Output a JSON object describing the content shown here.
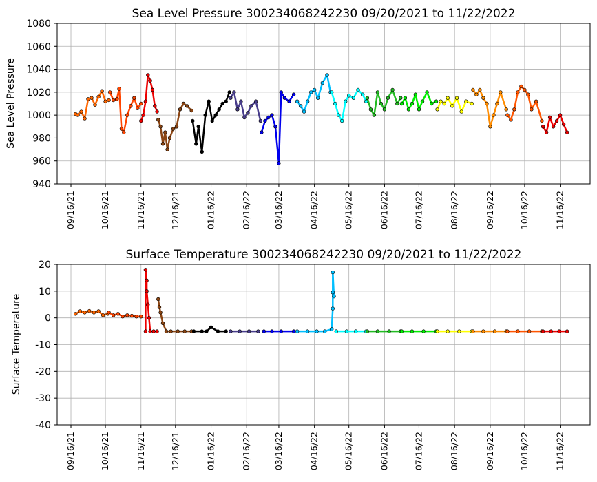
{
  "chart_data": [
    {
      "type": "scatter",
      "title": "Sea Level Pressure 300234068242230  09/20/2021 to 11/22/2022",
      "xlabel": "",
      "ylabel": "Sea Level Pressure",
      "ylim": [
        940,
        1080
      ],
      "yticks": [
        940,
        960,
        980,
        1000,
        1020,
        1040,
        1060,
        1080
      ],
      "xlim": [
        "2021-09-04",
        "2022-12-12"
      ],
      "xticks": [
        "09/16/21",
        "10/16/21",
        "11/16/21",
        "12/16/21",
        "01/16/22",
        "02/16/22",
        "03/16/22",
        "04/16/22",
        "05/16/22",
        "06/16/22",
        "07/16/22",
        "08/16/22",
        "09/16/22",
        "10/16/22",
        "11/16/22"
      ],
      "grid": true,
      "series": [
        {
          "color": "#ff6600",
          "x": [
            "2021-09-20",
            "2021-09-22",
            "2021-09-25",
            "2021-09-28",
            "2021-10-01",
            "2021-10-04",
            "2021-10-07",
            "2021-10-10",
            "2021-10-13",
            "2021-10-16",
            "2021-10-19"
          ],
          "y": [
            1001,
            1000,
            1003,
            997,
            1014,
            1015,
            1009,
            1016,
            1021,
            1012,
            1013
          ]
        },
        {
          "color": "#ff4500",
          "x": [
            "2021-10-20",
            "2021-10-23",
            "2021-10-26",
            "2021-10-28",
            "2021-10-30",
            "2021-11-01",
            "2021-11-04",
            "2021-11-07",
            "2021-11-10",
            "2021-11-13",
            "2021-11-16"
          ],
          "y": [
            1020,
            1013,
            1014,
            1023,
            988,
            985,
            1000,
            1008,
            1015,
            1006,
            1010
          ]
        },
        {
          "color": "#ee0000",
          "x": [
            "2021-11-16",
            "2021-11-18",
            "2021-11-20",
            "2021-11-22",
            "2021-11-24",
            "2021-11-26",
            "2021-11-28",
            "2021-11-30"
          ],
          "y": [
            995,
            1000,
            1012,
            1035,
            1030,
            1022,
            1008,
            1003
          ]
        },
        {
          "color": "#8b4513",
          "x": [
            "2021-12-01",
            "2021-12-03",
            "2021-12-05",
            "2021-12-07",
            "2021-12-09",
            "2021-12-11",
            "2021-12-14",
            "2021-12-17",
            "2021-12-20",
            "2021-12-23",
            "2021-12-26",
            "2021-12-30"
          ],
          "y": [
            996,
            990,
            975,
            985,
            970,
            980,
            988,
            990,
            1005,
            1010,
            1008,
            1004
          ]
        },
        {
          "color": "#000000",
          "x": [
            "2021-12-31",
            "2022-01-03",
            "2022-01-05",
            "2022-01-08",
            "2022-01-11",
            "2022-01-14",
            "2022-01-17",
            "2022-01-20",
            "2022-01-23",
            "2022-01-26",
            "2022-01-29",
            "2022-02-01"
          ],
          "y": [
            995,
            975,
            990,
            968,
            1000,
            1012,
            995,
            1000,
            1005,
            1010,
            1012,
            1020
          ]
        },
        {
          "color": "#483d8b",
          "x": [
            "2022-02-02",
            "2022-02-05",
            "2022-02-08",
            "2022-02-11",
            "2022-02-14",
            "2022-02-17",
            "2022-02-20",
            "2022-02-24",
            "2022-02-28"
          ],
          "y": [
            1015,
            1020,
            1005,
            1012,
            998,
            1002,
            1008,
            1012,
            995
          ]
        },
        {
          "color": "#0000ee",
          "x": [
            "2022-03-01",
            "2022-03-04",
            "2022-03-07",
            "2022-03-10",
            "2022-03-13",
            "2022-03-16",
            "2022-03-18",
            "2022-03-21",
            "2022-03-25",
            "2022-03-29"
          ],
          "y": [
            985,
            995,
            998,
            1000,
            990,
            958,
            1020,
            1015,
            1012,
            1018
          ]
        },
        {
          "color": "#00bfff",
          "x": [
            "2022-04-01",
            "2022-04-04",
            "2022-04-07",
            "2022-04-10",
            "2022-04-13",
            "2022-04-16",
            "2022-04-19",
            "2022-04-23",
            "2022-04-27",
            "2022-04-30"
          ],
          "y": [
            1012,
            1008,
            1003,
            1012,
            1020,
            1022,
            1015,
            1028,
            1035,
            1020
          ]
        },
        {
          "color": "#00ffff",
          "x": [
            "2022-05-01",
            "2022-05-04",
            "2022-05-07",
            "2022-05-10",
            "2022-05-13",
            "2022-05-16",
            "2022-05-20",
            "2022-05-24",
            "2022-05-28",
            "2022-05-31"
          ],
          "y": [
            1020,
            1010,
            1000,
            995,
            1012,
            1017,
            1015,
            1022,
            1018,
            1012
          ]
        },
        {
          "color": "#22bb22",
          "x": [
            "2022-06-01",
            "2022-06-04",
            "2022-06-07",
            "2022-06-10",
            "2022-06-13",
            "2022-06-16",
            "2022-06-19",
            "2022-06-23",
            "2022-06-27",
            "2022-06-30"
          ],
          "y": [
            1015,
            1005,
            1000,
            1020,
            1010,
            1005,
            1015,
            1022,
            1010,
            1015
          ]
        },
        {
          "color": "#00ee00",
          "x": [
            "2022-07-01",
            "2022-07-04",
            "2022-07-07",
            "2022-07-10",
            "2022-07-13",
            "2022-07-16",
            "2022-07-19",
            "2022-07-23",
            "2022-07-27",
            "2022-07-31"
          ],
          "y": [
            1010,
            1015,
            1005,
            1010,
            1018,
            1005,
            1012,
            1020,
            1010,
            1012
          ]
        },
        {
          "color": "#ffff00",
          "x": [
            "2022-08-01",
            "2022-08-04",
            "2022-08-07",
            "2022-08-10",
            "2022-08-14",
            "2022-08-18",
            "2022-08-22",
            "2022-08-26",
            "2022-08-31"
          ],
          "y": [
            1005,
            1012,
            1010,
            1015,
            1008,
            1015,
            1003,
            1012,
            1010
          ]
        },
        {
          "color": "#ff8c00",
          "x": [
            "2022-09-01",
            "2022-09-04",
            "2022-09-07",
            "2022-09-10",
            "2022-09-13",
            "2022-09-16",
            "2022-09-19",
            "2022-09-22",
            "2022-09-25",
            "2022-09-30"
          ],
          "y": [
            1022,
            1018,
            1022,
            1015,
            1010,
            990,
            1000,
            1010,
            1020,
            1005
          ]
        },
        {
          "color": "#ff5500",
          "x": [
            "2022-10-01",
            "2022-10-04",
            "2022-10-07",
            "2022-10-10",
            "2022-10-13",
            "2022-10-16",
            "2022-10-19",
            "2022-10-22",
            "2022-10-26",
            "2022-10-31"
          ],
          "y": [
            1000,
            996,
            1005,
            1020,
            1025,
            1022,
            1018,
            1005,
            1012,
            995
          ]
        },
        {
          "color": "#ee0000",
          "x": [
            "2022-11-01",
            "2022-11-04",
            "2022-11-07",
            "2022-11-10",
            "2022-11-13",
            "2022-11-16",
            "2022-11-19",
            "2022-11-22"
          ],
          "y": [
            990,
            985,
            998,
            990,
            995,
            1000,
            992,
            985
          ]
        }
      ]
    },
    {
      "type": "scatter",
      "title": "Surface Temperature 300234068242230  09/20/2021 to 11/22/2022",
      "xlabel": "",
      "ylabel": "Surface Temperature",
      "ylim": [
        -40,
        20
      ],
      "yticks": [
        -40,
        -30,
        -20,
        -10,
        0,
        10,
        20
      ],
      "xlim": [
        "2021-09-04",
        "2022-12-12"
      ],
      "xticks": [
        "09/16/21",
        "10/16/21",
        "11/16/21",
        "12/16/21",
        "01/16/22",
        "02/16/22",
        "03/16/22",
        "04/16/22",
        "05/16/22",
        "06/16/22",
        "07/16/22",
        "08/16/22",
        "09/16/22",
        "10/16/22",
        "11/16/22"
      ],
      "grid": true,
      "series": [
        {
          "color": "#ff6600",
          "x": [
            "2021-09-20",
            "2021-09-24",
            "2021-09-28",
            "2021-10-02",
            "2021-10-06",
            "2021-10-10",
            "2021-10-14",
            "2021-10-18"
          ],
          "y": [
            1.5,
            2.5,
            2.0,
            2.6,
            2.0,
            2.5,
            1.0,
            1.5
          ]
        },
        {
          "color": "#ff4500",
          "x": [
            "2021-10-19",
            "2021-10-23",
            "2021-10-27",
            "2021-10-31",
            "2021-11-04",
            "2021-11-08",
            "2021-11-12",
            "2021-11-16"
          ],
          "y": [
            2.0,
            1.0,
            1.5,
            0.5,
            1.0,
            0.8,
            0.5,
            0.5
          ]
        },
        {
          "color": "#ee0000",
          "x": [
            "2021-11-20",
            "2021-11-20",
            "2021-11-21",
            "2021-11-21",
            "2021-11-22",
            "2021-11-23",
            "2021-11-24",
            "2021-11-27",
            "2021-11-30"
          ],
          "y": [
            -5.0,
            18.0,
            14.0,
            10.0,
            5.0,
            0.0,
            -5.0,
            -5.0,
            -5.0
          ]
        },
        {
          "color": "#8b4513",
          "x": [
            "2021-12-01",
            "2021-12-02",
            "2021-12-03",
            "2021-12-05",
            "2021-12-08",
            "2021-12-12",
            "2021-12-18",
            "2021-12-24",
            "2021-12-30"
          ],
          "y": [
            7.0,
            4.0,
            2.0,
            -2.0,
            -5.0,
            -5.0,
            -5.0,
            -5.0,
            -5.0
          ]
        },
        {
          "color": "#000000",
          "x": [
            "2022-01-01",
            "2022-01-08",
            "2022-01-12",
            "2022-01-16",
            "2022-01-22",
            "2022-01-29"
          ],
          "y": [
            -5.0,
            -5.0,
            -5.0,
            -3.5,
            -5.0,
            -5.0
          ]
        },
        {
          "color": "#483d8b",
          "x": [
            "2022-02-02",
            "2022-02-10",
            "2022-02-18",
            "2022-02-26"
          ],
          "y": [
            -5.0,
            -5.0,
            -5.0,
            -5.0
          ]
        },
        {
          "color": "#0000ee",
          "x": [
            "2022-03-03",
            "2022-03-10",
            "2022-03-18",
            "2022-03-29"
          ],
          "y": [
            -5.0,
            -5.0,
            -5.0,
            -5.0
          ]
        },
        {
          "color": "#00bfff",
          "x": [
            "2022-04-01",
            "2022-04-10",
            "2022-04-18",
            "2022-04-25",
            "2022-05-01",
            "2022-05-02",
            "2022-05-02",
            "2022-05-02",
            "2022-05-03"
          ],
          "y": [
            -5.0,
            -5.0,
            -5.0,
            -5.0,
            -4.2,
            3.5,
            9.5,
            17.0,
            8.0
          ]
        },
        {
          "color": "#00ffff",
          "x": [
            "2022-05-05",
            "2022-05-14",
            "2022-05-22",
            "2022-05-31"
          ],
          "y": [
            -5.0,
            -5.0,
            -5.0,
            -5.0
          ]
        },
        {
          "color": "#22bb22",
          "x": [
            "2022-06-01",
            "2022-06-10",
            "2022-06-20",
            "2022-06-30"
          ],
          "y": [
            -5.0,
            -5.0,
            -5.0,
            -5.0
          ]
        },
        {
          "color": "#00ee00",
          "x": [
            "2022-07-01",
            "2022-07-10",
            "2022-07-20",
            "2022-07-31"
          ],
          "y": [
            -5.0,
            -5.0,
            -5.0,
            -5.0
          ]
        },
        {
          "color": "#ffff00",
          "x": [
            "2022-08-01",
            "2022-08-10",
            "2022-08-20",
            "2022-08-31"
          ],
          "y": [
            -5.0,
            -5.0,
            -5.0,
            -5.0
          ]
        },
        {
          "color": "#ff8c00",
          "x": [
            "2022-09-01",
            "2022-09-10",
            "2022-09-20",
            "2022-09-30"
          ],
          "y": [
            -5.0,
            -5.0,
            -5.0,
            -5.0
          ]
        },
        {
          "color": "#ff5500",
          "x": [
            "2022-10-01",
            "2022-10-10",
            "2022-10-20",
            "2022-10-31"
          ],
          "y": [
            -5.0,
            -5.0,
            -5.0,
            -5.0
          ]
        },
        {
          "color": "#ee0000",
          "x": [
            "2022-11-01",
            "2022-11-08",
            "2022-11-15",
            "2022-11-22"
          ],
          "y": [
            -5.0,
            -5.0,
            -5.0,
            -5.0
          ]
        }
      ]
    }
  ]
}
